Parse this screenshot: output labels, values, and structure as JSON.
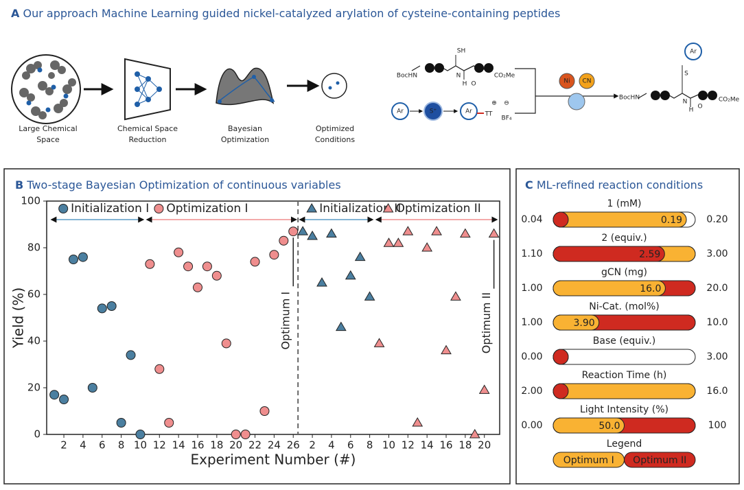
{
  "panel_a": {
    "label": "A",
    "title": "Our approach Machine Learning guided nickel-catalyzed arylation of cysteine-containing peptides",
    "steps": [
      [
        "Large Chemical",
        "Space"
      ],
      [
        "Chemical Space",
        "Reduction"
      ],
      [
        "Bayesian",
        "Optimization"
      ],
      [
        "Optimized",
        "Conditions"
      ]
    ],
    "scheme": [
      "BocHN",
      "SH",
      "H",
      "N",
      "O",
      "CO₂Me",
      "Ar",
      "S⁺",
      "Ar",
      "TT",
      "⊕",
      "⊖",
      "BF₄",
      "Ni",
      "CN",
      "Ar",
      "S",
      "BocHN",
      "H",
      "N",
      "O",
      "CO₂Me"
    ]
  },
  "chart_data": [
    {
      "type": "scatter",
      "label": "B",
      "title": "Two-stage Bayesian Optimization of continuous variables",
      "xlabel": "Experiment Number (#)",
      "ylabel": "Yield (%)",
      "xlim": [
        0.2,
        47.6
      ],
      "ylim": [
        0,
        100
      ],
      "xticks": [
        2,
        4,
        6,
        8,
        10,
        12,
        14,
        16,
        18,
        20,
        22,
        24,
        26,
        {
          "value": 28,
          "label": "2"
        },
        {
          "value": 30,
          "label": "4"
        },
        {
          "value": 32,
          "label": "6"
        },
        {
          "value": 34,
          "label": "8"
        },
        {
          "value": 36,
          "label": "10"
        },
        {
          "value": 38,
          "label": "12"
        },
        {
          "value": 40,
          "label": "14"
        },
        {
          "value": 42,
          "label": "16"
        },
        {
          "value": 44,
          "label": "18"
        },
        {
          "value": 46,
          "label": "20"
        }
      ],
      "yticks": [
        0,
        20,
        40,
        60,
        80,
        100
      ],
      "series": [
        {
          "name": "Initialization I",
          "color": "#4b7fa0",
          "line_color": "#5b9bc5",
          "marker": "circle",
          "x": [
            1,
            2,
            3,
            4,
            5,
            6,
            7,
            8,
            9,
            10
          ],
          "values": [
            17,
            15,
            75,
            76,
            20,
            54,
            55,
            5,
            34,
            0
          ]
        },
        {
          "name": "Optimization I",
          "color": "#ef8e8e",
          "line_color": "#ef8e8e",
          "marker": "circle",
          "x": [
            11,
            12,
            13,
            14,
            15,
            16,
            17,
            18,
            19,
            20,
            21,
            22,
            23,
            24,
            25,
            26
          ],
          "values": [
            73,
            28,
            5,
            78,
            72,
            63,
            72,
            68,
            39,
            0,
            0,
            74,
            10,
            77,
            83,
            87
          ]
        },
        {
          "name": "Initialization II",
          "color": "#4b7fa0",
          "line_color": "#5b9bc5",
          "marker": "triangle",
          "x": [
            27,
            28,
            29,
            30,
            31,
            32,
            33,
            34
          ],
          "values": [
            87,
            85,
            65,
            86,
            46,
            68,
            76,
            59
          ]
        },
        {
          "name": "Optimization II",
          "color": "#ef8e8e",
          "line_color": "#ef8e8e",
          "marker": "triangle",
          "x": [
            35,
            36,
            37,
            38,
            39,
            40,
            41,
            42,
            43,
            44,
            45,
            46,
            47
          ],
          "values": [
            39,
            82,
            82,
            87,
            5,
            80,
            87,
            36,
            59,
            86,
            0,
            19,
            86
          ]
        }
      ],
      "annotations": [
        "Optimum I",
        "Optimum II"
      ]
    },
    {
      "type": "range_bar",
      "label": "C",
      "title": "ML-refined reaction conditions",
      "series": [
        {
          "name": "Optimum I",
          "color": "#f9b233"
        },
        {
          "name": "Optimum II",
          "color": "#cf2a20"
        }
      ],
      "legend_title": "Legend",
      "rows": [
        {
          "name": "1 (mM)",
          "range": [
            {
              "value": 0.04,
              "label": "0.04"
            },
            {
              "value": 0.2,
              "label": "0.20"
            }
          ],
          "values": [
            0.19,
            0.04
          ],
          "value_labels": [
            "0.19",
            null
          ]
        },
        {
          "name": "2 (equiv.)",
          "range": [
            {
              "value": 1.1,
              "label": "1.10"
            },
            {
              "value": 3,
              "label": "3.00"
            }
          ],
          "values": [
            3,
            2.59
          ],
          "value_labels": [
            null,
            "2.59"
          ]
        },
        {
          "name": "gCN (mg)",
          "range": [
            {
              "value": 1,
              "label": "1.00"
            },
            {
              "value": 20,
              "label": "20.0"
            }
          ],
          "values": [
            16,
            20
          ],
          "value_labels": [
            "16.0",
            null
          ]
        },
        {
          "name": "Ni-Cat. (mol%)",
          "range": [
            {
              "value": 1,
              "label": "1.00"
            },
            {
              "value": 10,
              "label": "10.0"
            }
          ],
          "values": [
            3.9,
            10
          ],
          "value_labels": [
            "3.90",
            null
          ]
        },
        {
          "name": "Base (equiv.)",
          "range": [
            {
              "value": 0,
              "label": "0.00"
            },
            {
              "value": 3,
              "label": "3.00"
            }
          ],
          "values": [
            0.05,
            0.05
          ],
          "value_labels": [
            null,
            null
          ]
        },
        {
          "name": "Reaction Time (h)",
          "range": [
            {
              "value": 2,
              "label": "2.00"
            },
            {
              "value": 16,
              "label": "16.0"
            }
          ],
          "values": [
            16,
            2
          ],
          "value_labels": [
            null,
            null
          ]
        },
        {
          "name": "Light Intensity (%)",
          "range": [
            {
              "value": 0,
              "label": "0.00"
            },
            {
              "value": 100,
              "label": "100"
            }
          ],
          "values": [
            50,
            100
          ],
          "value_labels": [
            "50.0",
            null
          ]
        }
      ]
    }
  ]
}
